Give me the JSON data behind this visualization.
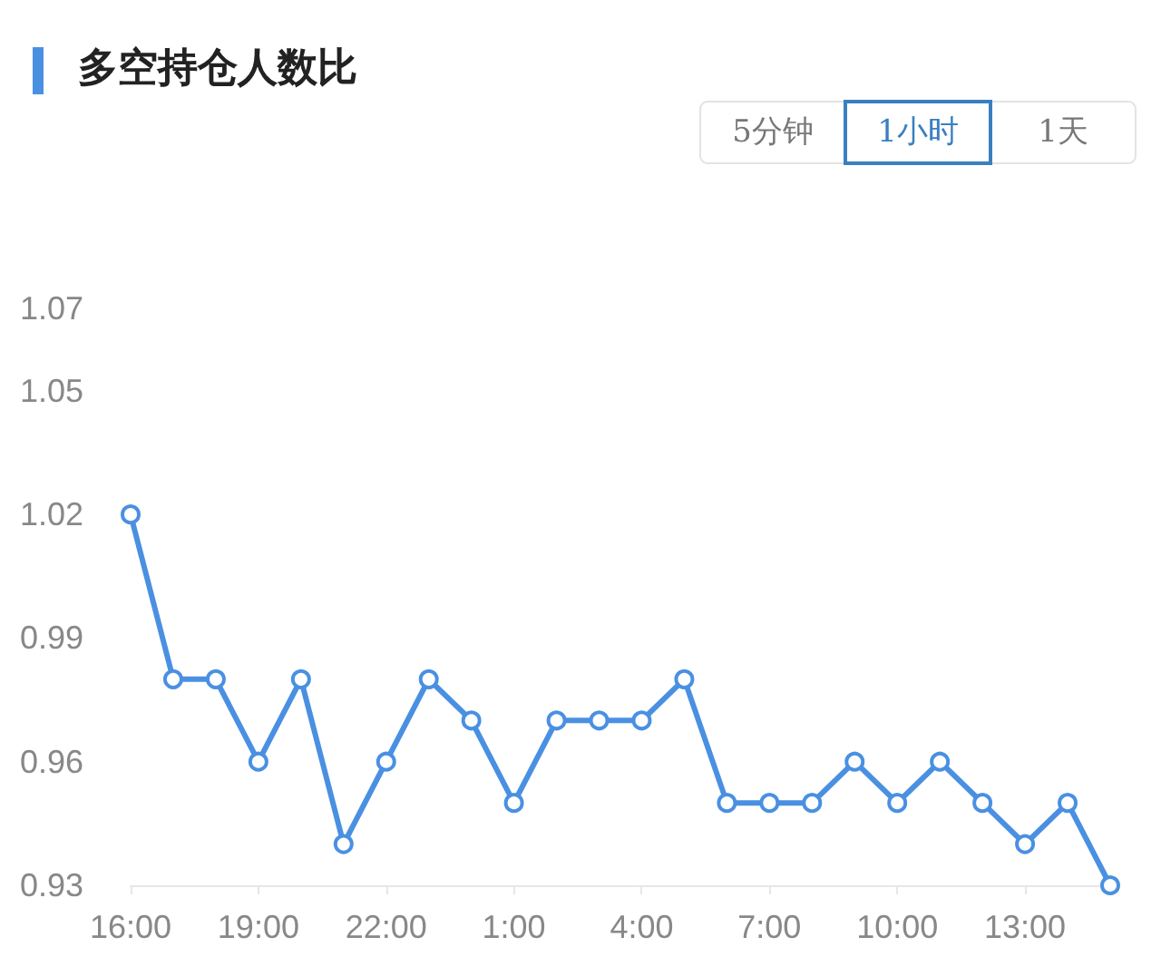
{
  "chart_data": {
    "type": "line",
    "title": "多空持仓人数比",
    "annotations": [
      "5分钟",
      "1小时",
      "1天"
    ],
    "categories": [
      "16:00",
      null,
      null,
      "19:00",
      null,
      null,
      "22:00",
      null,
      null,
      "1:00",
      null,
      null,
      "4:00",
      null,
      null,
      "7:00",
      null,
      null,
      "10:00",
      null,
      null,
      "13:00",
      null,
      null
    ],
    "series": [
      {
        "color": "#4a90e2",
        "values": [
          1.02,
          0.98,
          0.98,
          0.96,
          0.98,
          0.94,
          0.96,
          0.98,
          0.97,
          0.95,
          0.97,
          0.97,
          0.97,
          0.98,
          0.95,
          0.95,
          0.95,
          0.96,
          0.95,
          0.96,
          0.95,
          0.94,
          0.95,
          0.93
        ]
      }
    ],
    "ylim": [
      0.93,
      1.07
    ],
    "yticks": [
      0.93,
      0.96,
      0.99,
      1.02,
      1.05,
      1.07
    ],
    "grid": false,
    "marker": "circle",
    "line_style": "solid"
  }
}
